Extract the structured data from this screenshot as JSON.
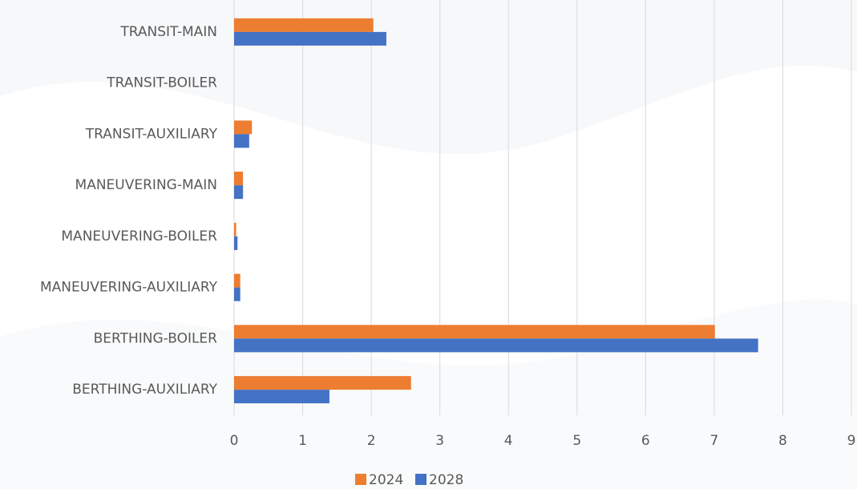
{
  "chart_data": {
    "type": "bar",
    "orientation": "horizontal",
    "categories": [
      "TRANSIT-MAIN",
      "TRANSIT-BOILER",
      "TRANSIT-AUXILIARY",
      "MANEUVERING-MAIN",
      "MANEUVERING-BOILER",
      "MANEUVERING-AUXILIARY",
      "BERTHING-BOILER",
      "BERTHING-AUXILIARY"
    ],
    "series": [
      {
        "name": "2024",
        "color": "#ed7d31",
        "values": [
          2.03,
          0,
          0.26,
          0.13,
          0.03,
          0.09,
          7.01,
          2.58
        ]
      },
      {
        "name": "2028",
        "color": "#4472c4",
        "values": [
          2.22,
          0,
          0.22,
          0.13,
          0.05,
          0.09,
          7.64,
          1.39
        ]
      }
    ],
    "xlim": [
      0,
      9
    ],
    "xticks": [
      0,
      1,
      2,
      3,
      4,
      5,
      6,
      7,
      8,
      9
    ],
    "grid": true,
    "legend": "bottom"
  }
}
